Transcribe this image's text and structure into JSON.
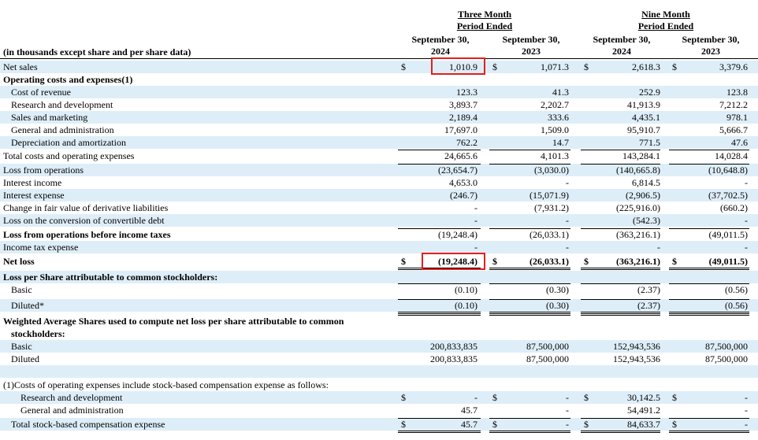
{
  "header": {
    "three_month_line1": "Three Month",
    "three_month_line2": "Period Ended",
    "nine_month_line1": "Nine Month",
    "nine_month_line2": "Period Ended",
    "col1_date": "September 30,",
    "col1_year": "2024",
    "col2_date": "September 30,",
    "col2_year": "2023",
    "col3_date": "September 30,",
    "col3_year": "2024",
    "col4_date": "September 30,",
    "col4_year": "2023",
    "units_note": "(in thousands except share and per share data)"
  },
  "rows": [
    {
      "label": "Net sales",
      "c1": "1,010.9",
      "c2": "1,071.3",
      "c3": "2,618.3",
      "c4": "3,379.6",
      "dollars": [
        "$",
        "$",
        "$",
        "$"
      ]
    },
    {
      "label": "Operating costs and expenses(1)",
      "c1": "",
      "c2": "",
      "c3": "",
      "c4": "",
      "dollars": [
        "",
        "",
        "",
        ""
      ]
    },
    {
      "label": "Cost of revenue",
      "c1": "123.3",
      "c2": "41.3",
      "c3": "252.9",
      "c4": "123.8",
      "dollars": [
        "",
        "",
        "",
        ""
      ]
    },
    {
      "label": "Research and development",
      "c1": "3,893.7",
      "c2": "2,202.7",
      "c3": "41,913.9",
      "c4": "7,212.2",
      "dollars": [
        "",
        "",
        "",
        ""
      ]
    },
    {
      "label": "Sales and marketing",
      "c1": "2,189.4",
      "c2": "333.6",
      "c3": "4,435.1",
      "c4": "978.1",
      "dollars": [
        "",
        "",
        "",
        ""
      ]
    },
    {
      "label": "General and administration",
      "c1": "17,697.0",
      "c2": "1,509.0",
      "c3": "95,910.7",
      "c4": "5,666.7",
      "dollars": [
        "",
        "",
        "",
        ""
      ]
    },
    {
      "label": "Depreciation and amortization",
      "c1": "762.2",
      "c2": "14.7",
      "c3": "771.5",
      "c4": "47.6",
      "dollars": [
        "",
        "",
        "",
        ""
      ]
    },
    {
      "label": "Total costs and operating expenses",
      "c1": "24,665.6",
      "c2": "4,101.3",
      "c3": "143,284.1",
      "c4": "14,028.4",
      "dollars": [
        "",
        "",
        "",
        ""
      ]
    },
    {
      "label": "Loss from operations",
      "c1": "(23,654.7)",
      "c2": "(3,030.0)",
      "c3": "(140,665.8)",
      "c4": "(10,648.8)",
      "dollars": [
        "",
        "",
        "",
        ""
      ]
    },
    {
      "label": "Interest income",
      "c1": "4,653.0",
      "c2": "-",
      "c3": "6,814.5",
      "c4": "-",
      "dollars": [
        "",
        "",
        "",
        ""
      ]
    },
    {
      "label": "Interest expense",
      "c1": "(246.7)",
      "c2": "(15,071.9)",
      "c3": "(2,906.5)",
      "c4": "(37,702.5)",
      "dollars": [
        "",
        "",
        "",
        ""
      ]
    },
    {
      "label": "Change in fair value of derivative liabilities",
      "c1": "-",
      "c2": "(7,931.2)",
      "c3": "(225,916.0)",
      "c4": "(660.2)",
      "dollars": [
        "",
        "",
        "",
        ""
      ]
    },
    {
      "label": "Loss on the conversion of convertible debt",
      "c1": "-",
      "c2": "-",
      "c3": "(542.3)",
      "c4": "-",
      "dollars": [
        "",
        "",
        "",
        ""
      ]
    },
    {
      "label": "Loss from operations before income taxes",
      "c1": "(19,248.4)",
      "c2": "(26,033.1)",
      "c3": "(363,216.1)",
      "c4": "(49,011.5)",
      "dollars": [
        "",
        "",
        "",
        ""
      ]
    },
    {
      "label": "Income tax expense",
      "c1": "-",
      "c2": "-",
      "c3": "-",
      "c4": "-",
      "dollars": [
        "",
        "",
        "",
        ""
      ]
    },
    {
      "label": "Net loss",
      "c1": "(19,248.4)",
      "c2": "(26,033.1)",
      "c3": "(363,216.1)",
      "c4": "(49,011.5)",
      "dollars": [
        "$",
        "$",
        "$",
        "$"
      ]
    },
    {
      "label": "Loss per Share attributable to common stockholders:",
      "c1": "",
      "c2": "",
      "c3": "",
      "c4": "",
      "dollars": [
        "",
        "",
        "",
        ""
      ]
    },
    {
      "label": "Basic",
      "c1": "(0.10)",
      "c2": "(0.30)",
      "c3": "(2.37)",
      "c4": "(0.56)",
      "dollars": [
        "",
        "",
        "",
        ""
      ]
    },
    {
      "label": "Diluted*",
      "c1": "(0.10)",
      "c2": "(0.30)",
      "c3": "(2.37)",
      "c4": "(0.56)",
      "dollars": [
        "",
        "",
        "",
        ""
      ]
    },
    {
      "label": "Weighted Average Shares used to compute net loss per share attributable to common",
      "c1": "",
      "c2": "",
      "c3": "",
      "c4": "",
      "dollars": [
        "",
        "",
        "",
        ""
      ]
    },
    {
      "label": "stockholders:",
      "c1": "",
      "c2": "",
      "c3": "",
      "c4": "",
      "dollars": [
        "",
        "",
        "",
        ""
      ]
    },
    {
      "label": "Basic",
      "c1": "200,833,835",
      "c2": "87,500,000",
      "c3": "152,943,536",
      "c4": "87,500,000",
      "dollars": [
        "",
        "",
        "",
        ""
      ]
    },
    {
      "label": "Diluted",
      "c1": "200,833,835",
      "c2": "87,500,000",
      "c3": "152,943,536",
      "c4": "87,500,000",
      "dollars": [
        "",
        "",
        "",
        ""
      ]
    },
    {
      "label": "",
      "c1": "",
      "c2": "",
      "c3": "",
      "c4": "",
      "dollars": [
        "",
        "",
        "",
        ""
      ]
    },
    {
      "label": "(1)Costs of operating expenses include stock-based compensation expense as follows:",
      "c1": "",
      "c2": "",
      "c3": "",
      "c4": "",
      "dollars": [
        "",
        "",
        "",
        ""
      ]
    },
    {
      "label": "Research and development",
      "c1": "-",
      "c2": "-",
      "c3": "30,142.5",
      "c4": "-",
      "dollars": [
        "$",
        "$",
        "$",
        "$"
      ]
    },
    {
      "label": "General and administration",
      "c1": "45.7",
      "c2": "-",
      "c3": "54,491.2",
      "c4": "-",
      "dollars": [
        "",
        "",
        "",
        ""
      ]
    },
    {
      "label": "Total stock-based compensation expense",
      "c1": "45.7",
      "c2": "-",
      "c3": "84,633.7",
      "c4": "-",
      "dollars": [
        "$",
        "$",
        "$",
        "$"
      ]
    }
  ]
}
